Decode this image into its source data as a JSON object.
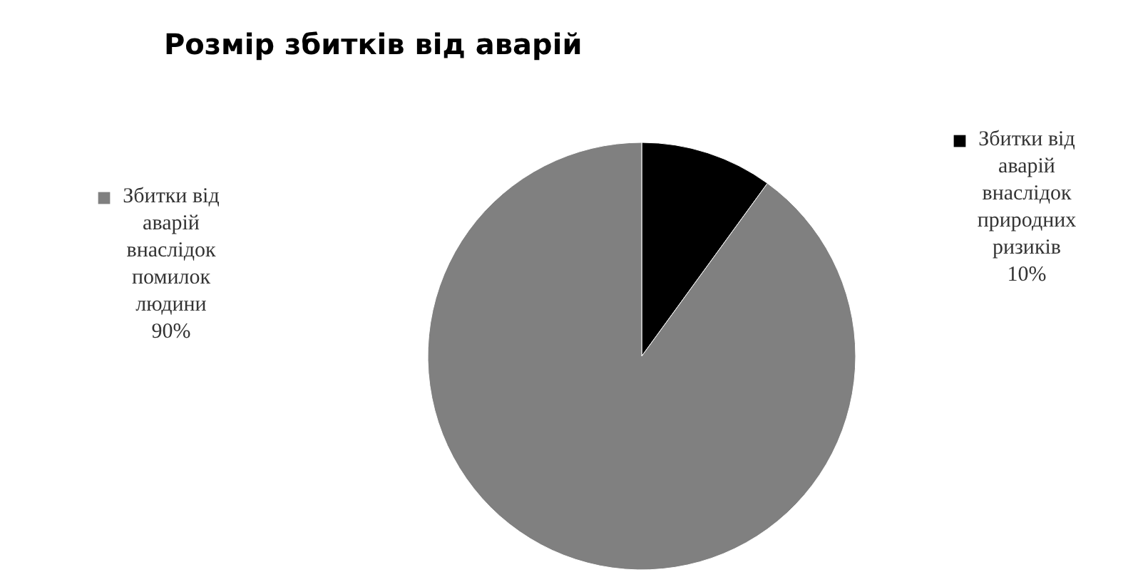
{
  "chart_data": {
    "type": "pie",
    "title": "Розмір збитків  від   аварій",
    "categories": [
      "Збитки від аварій внаслідок природних ризиків",
      "Збитки від аварій внаслідок помилок людини"
    ],
    "values": [
      10,
      90
    ],
    "colors": [
      "#000000",
      "#808080"
    ],
    "value_labels": [
      "10%",
      "90%"
    ],
    "legend": "top"
  }
}
